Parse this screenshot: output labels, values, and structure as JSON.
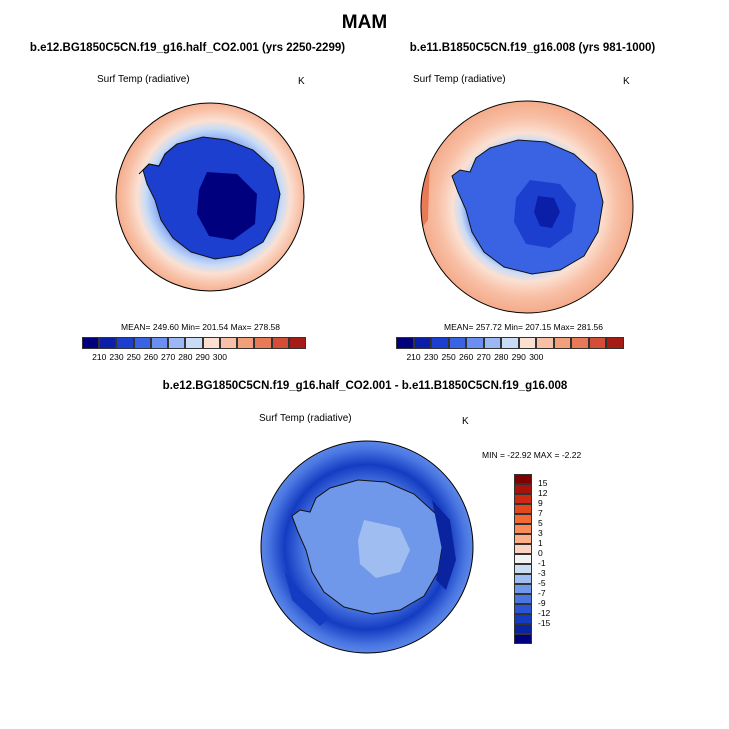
{
  "figure": {
    "title": "MAM"
  },
  "panels": [
    {
      "title": "b.e12.BG1850C5CN.f19_g16.half_CO2.001 (yrs 2250-2299)",
      "variable": "Surf Temp (radiative)",
      "units": "K",
      "stats": "MEAN= 249.60   Min= 201.54   Max= 278.58",
      "labelbar": {
        "ticks": [
          "210",
          "230",
          "250",
          "260",
          "270",
          "280",
          "290",
          "300"
        ],
        "colors": [
          "#00007f",
          "#0a1ea8",
          "#1c3fcf",
          "#3a63e4",
          "#6a8ff0",
          "#9bb8f5",
          "#c8dcf7",
          "#fbe0d2",
          "#f8c0a6",
          "#f2a07c",
          "#e77b57",
          "#d24e36",
          "#a51c16"
        ]
      },
      "ice_color": "#1c3fcf"
    },
    {
      "title": "b.e11.B1850C5CN.f19_g16.008 (yrs 981-1000)",
      "variable": "Surf Temp (radiative)",
      "units": "K",
      "stats": "MEAN= 257.72   Min= 207.15   Max= 281.56",
      "labelbar": {
        "ticks": [
          "210",
          "230",
          "250",
          "260",
          "270",
          "280",
          "290",
          "300"
        ],
        "colors": [
          "#00007f",
          "#0a1ea8",
          "#1c3fcf",
          "#3a63e4",
          "#6a8ff0",
          "#9bb8f5",
          "#c8dcf7",
          "#fbe0d2",
          "#f8c0a6",
          "#f2a07c",
          "#e77b57",
          "#d24e36",
          "#a51c16"
        ]
      }
    }
  ],
  "diff_panel": {
    "title": "b.e12.BG1850C5CN.f19_g16.half_CO2.001 - b.e11.B1850C5CN.f19_g16.008",
    "variable": "Surf Temp (radiative)",
    "units": "K",
    "stats": "MIN = -22.92  MAX =  -2.22",
    "labelbar": {
      "ticks": [
        "15",
        "12",
        "9",
        "7",
        "5",
        "3",
        "1",
        "0",
        "-1",
        "-3",
        "-5",
        "-7",
        "-9",
        "-12",
        "-15"
      ],
      "colors": [
        "#7f0000",
        "#a8120c",
        "#cc2a12",
        "#e6481e",
        "#f46a34",
        "#f98c58",
        "#fbb08a",
        "#fcd3be",
        "#f3f3f3",
        "#c9ddf4",
        "#9fbdf0",
        "#7098ea",
        "#4a76e2",
        "#2b55d6",
        "#143cc2",
        "#0a24a0",
        "#00007f"
      ]
    }
  }
}
